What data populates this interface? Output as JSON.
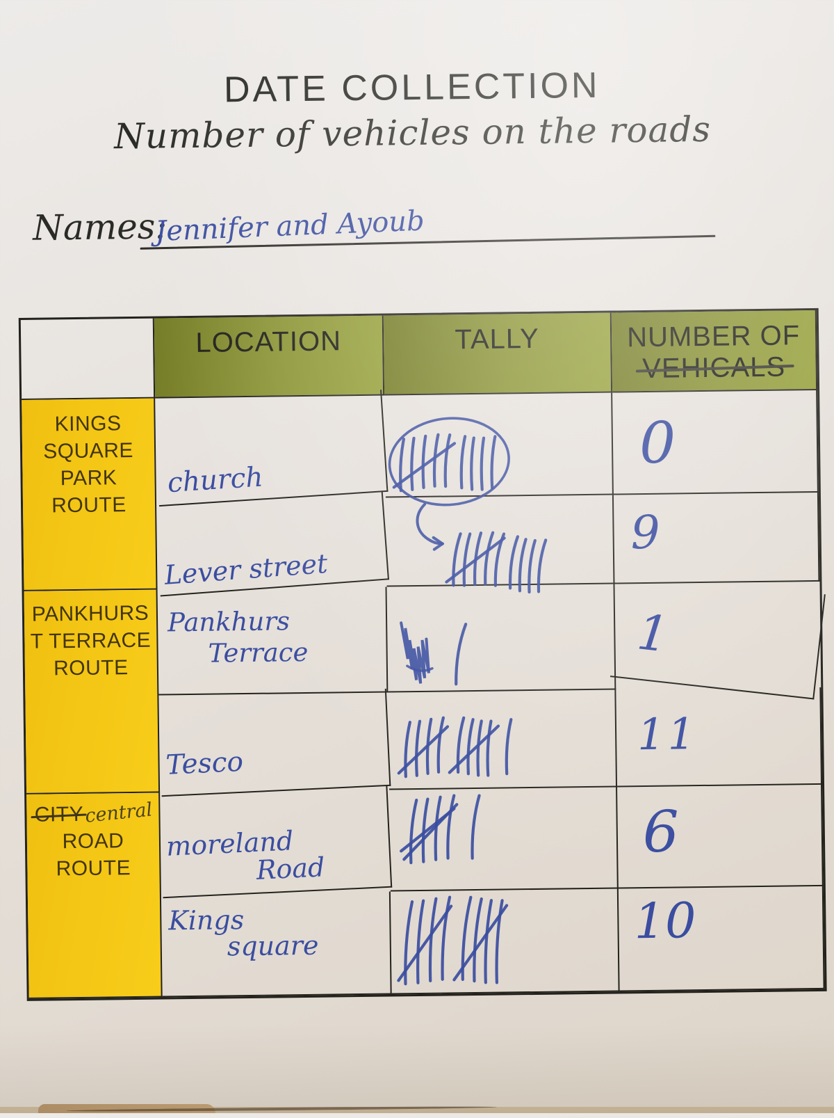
{
  "page": {
    "title": "DATE COLLECTION",
    "subtitle": "Number of vehicles on the roads",
    "names_label": "Names:",
    "names_value": "Jennifer and Ayoub"
  },
  "table": {
    "header": {
      "location": "LOCATION",
      "tally": "TALLY",
      "number_line1": "NUMBER OF",
      "number_line2": "VEHICALS"
    },
    "routes": [
      {
        "label": "KINGS\nSQUARE\nPARK\nROUTE"
      },
      {
        "label": "PANKHURS\nT TERRACE\nROUTE"
      },
      {
        "label_struck": "CITY",
        "label_correction": "central",
        "label_rest": "ROAD\nROUTE"
      }
    ],
    "rows": [
      {
        "location_line1": "church",
        "number": "0",
        "tally": {
          "circled": true,
          "groups": [
            {
              "strokes": 5,
              "cross": true
            },
            {
              "strokes": 4
            }
          ]
        }
      },
      {
        "location_line1": "Lever street",
        "number": "9",
        "tally": {
          "arrow": true,
          "groups": [
            {
              "strokes": 5,
              "cross": true
            },
            {
              "strokes": 4
            }
          ]
        }
      },
      {
        "location_line1": "Pankhurs",
        "location_line2": "Terrace",
        "number": "1",
        "tally": {
          "scribble": true,
          "groups": [
            {
              "strokes": 1
            }
          ]
        }
      },
      {
        "location_line1": "Tesco",
        "number": "11",
        "tally": {
          "groups": [
            {
              "strokes": 4,
              "cross": true
            },
            {
              "strokes": 4,
              "cross": true
            },
            {
              "strokes": 1
            }
          ]
        }
      },
      {
        "location_line1": "moreland",
        "location_line2": "Road",
        "number": "6",
        "tally": {
          "groups": [
            {
              "strokes": 4,
              "cross": 2
            },
            {
              "strokes": 1
            }
          ]
        }
      },
      {
        "location_line1": "Kings",
        "location_line2": "square",
        "number": "10",
        "tally": {
          "groups": [
            {
              "strokes": 4,
              "cross": true
            },
            {
              "strokes": 4,
              "cross": true
            }
          ]
        }
      }
    ]
  },
  "colors": {
    "header_green": "#87902f",
    "route_yellow": "#f5c614",
    "ink_blue": "#3a4da0",
    "pencil_black": "#262622"
  }
}
